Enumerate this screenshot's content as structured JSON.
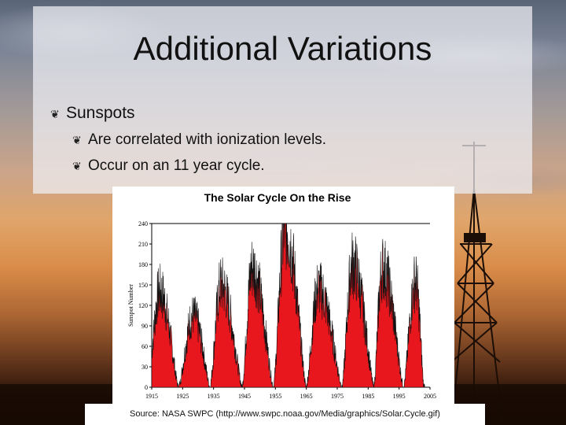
{
  "slide": {
    "title": "Additional Variations",
    "bullets": [
      {
        "text": "Sunspots",
        "icon": "leaf-bullet-icon"
      },
      {
        "text": "Are correlated with ionization levels.",
        "icon": "leaf-bullet-icon"
      },
      {
        "text": "Occur on an 11 year cycle.",
        "icon": "leaf-bullet-icon"
      }
    ],
    "source": "Source: NASA SWPC (http://www.swpc.noaa.gov/Media/graphics/Solar.Cycle.gif)"
  },
  "colors": {
    "bar_fill": "#e8161d",
    "bar_edge": "#111111",
    "panel": "#eeeef2"
  },
  "chart_data": {
    "type": "area",
    "title": "The Solar Cycle On the Rise",
    "ylabel": "Sunspot Number",
    "xlabel": "",
    "xlim": [
      1915,
      2005
    ],
    "ylim": [
      0,
      240
    ],
    "yticks": [
      0,
      30,
      60,
      90,
      120,
      150,
      180,
      210,
      240
    ],
    "xticks": [
      1915,
      1925,
      1935,
      1945,
      1955,
      1965,
      1975,
      1985,
      1995,
      2005
    ],
    "grid": false,
    "series": [
      {
        "peaks": [
          {
            "year": 1917.6,
            "value": 140
          },
          {
            "year": 1928.4,
            "value": 105
          },
          {
            "year": 1937.4,
            "value": 150
          },
          {
            "year": 1947.5,
            "value": 175
          },
          {
            "year": 1958.2,
            "value": 235
          },
          {
            "year": 1968.9,
            "value": 145
          },
          {
            "year": 1979.9,
            "value": 180
          },
          {
            "year": 1989.6,
            "value": 175
          },
          {
            "year": 2000.3,
            "value": 155
          }
        ],
        "minima_years": [
          1913.6,
          1923.6,
          1933.8,
          1944.2,
          1954.3,
          1964.9,
          1976.5,
          1986.8,
          1996.4,
          2003.0
        ]
      }
    ]
  }
}
